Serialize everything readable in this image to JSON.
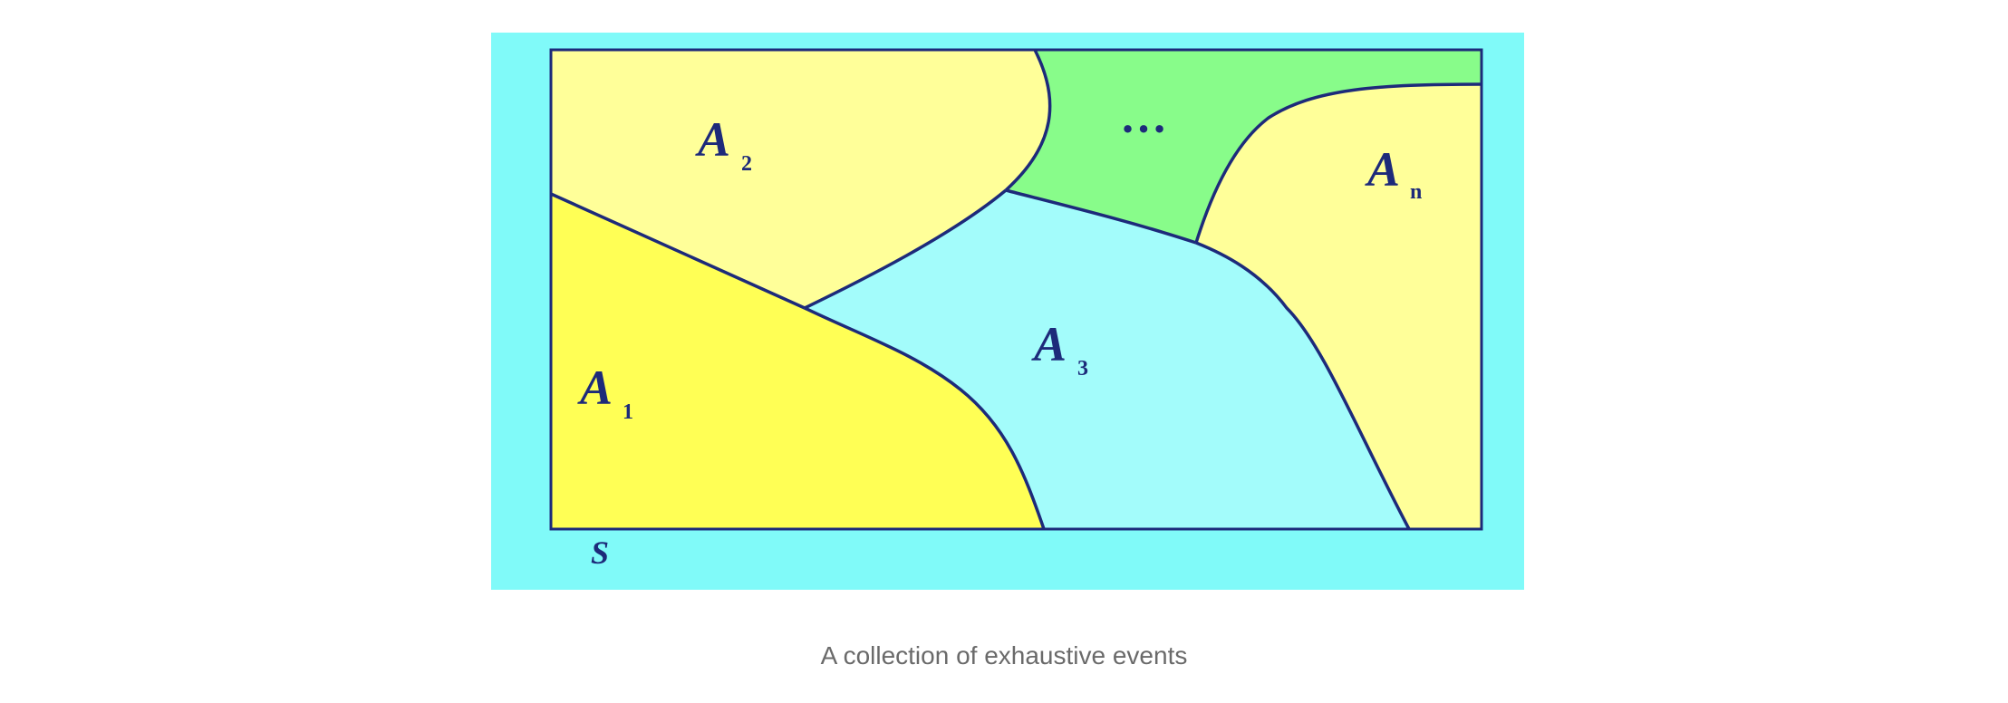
{
  "figure": {
    "regions": [
      {
        "id": "A1",
        "letter": "A",
        "sub": "1",
        "color": "#ffff55"
      },
      {
        "id": "A2",
        "letter": "A",
        "sub": "2",
        "color": "#ffff99"
      },
      {
        "id": "A3",
        "letter": "A",
        "sub": "3",
        "color": "#a3fcfb"
      },
      {
        "id": "An",
        "letter": "A",
        "sub": "n",
        "color": "#ffff99"
      },
      {
        "id": "dots",
        "text": "…",
        "color": "#88fc8a"
      }
    ],
    "sample_space_label": "S",
    "frame_color": "#80faf9",
    "border_color": "#1d2a7a"
  },
  "caption": "A collection of exhaustive events"
}
